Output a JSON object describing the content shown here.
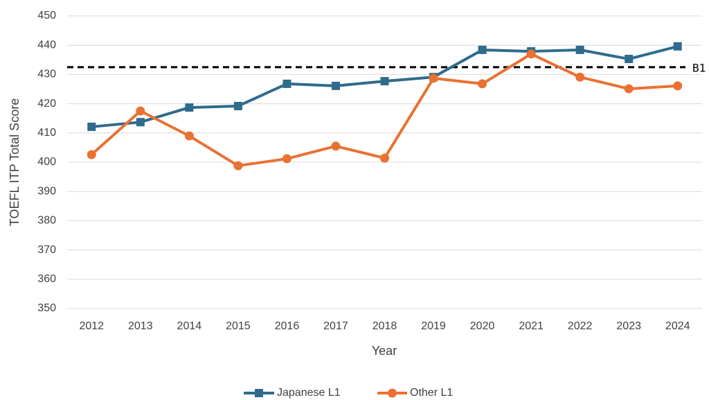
{
  "chart_data": {
    "type": "line",
    "x_label": "Year",
    "y_label": "TOEFL ITP Total Score",
    "categories": [
      "2012",
      "2013",
      "2014",
      "2015",
      "2016",
      "2017",
      "2018",
      "2019",
      "2020",
      "2021",
      "2022",
      "2023",
      "2024"
    ],
    "series": [
      {
        "name": "Japanese L1",
        "color": "#2f6b8c",
        "marker": "square",
        "values": [
          412.1,
          413.7,
          418.7,
          419.2,
          426.8,
          426.1,
          427.7,
          429.1,
          438.4,
          437.9,
          438.4,
          435.3,
          439.6
        ]
      },
      {
        "name": "Other L1",
        "color": "#e97132",
        "marker": "circle",
        "values": [
          402.6,
          417.5,
          409.0,
          398.8,
          401.2,
          405.5,
          401.4,
          428.7,
          426.8,
          437.0,
          429.1,
          425.1,
          426.1
        ]
      }
    ],
    "reference_line": {
      "value": 432.5,
      "label": "B1"
    },
    "ylim": [
      350,
      450
    ],
    "yticks": [
      350,
      360,
      370,
      380,
      390,
      400,
      410,
      420,
      430,
      440,
      450
    ],
    "grid": true,
    "legend": "bottom"
  }
}
